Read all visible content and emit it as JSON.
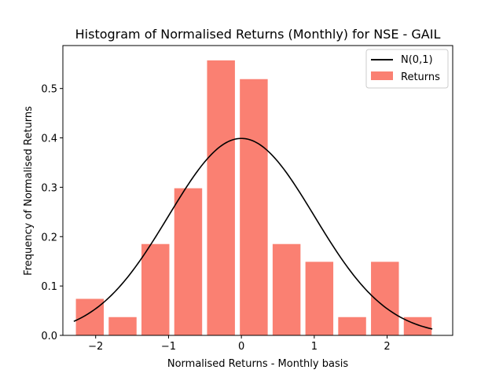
{
  "chart_data": {
    "type": "bar",
    "title": "Histogram of Normalised Returns (Monthly) for NSE - GAIL",
    "xlabel": "Normalised Returns - Monthly basis",
    "ylabel": "Frequency of Normalised Returns",
    "xlim": [
      -2.45,
      2.9
    ],
    "ylim": [
      0,
      0.587
    ],
    "xticks": [
      -2,
      -1,
      0,
      1,
      2
    ],
    "xtick_labels": [
      "−2",
      "−1",
      "0",
      "1",
      "2"
    ],
    "yticks": [
      0.0,
      0.1,
      0.2,
      0.3,
      0.4,
      0.5
    ],
    "ytick_labels": [
      "0.0",
      "0.1",
      "0.2",
      "0.3",
      "0.4",
      "0.5"
    ],
    "legend_position": "top-right",
    "grid": false,
    "series": [
      {
        "name": "Returns",
        "kind": "histogram",
        "color": "#fa8072",
        "bin_width": 0.45,
        "bar_width_fraction": 0.85,
        "bin_centers": [
          -2.08,
          -1.63,
          -1.18,
          -0.73,
          -0.28,
          0.17,
          0.62,
          1.07,
          1.52,
          1.97,
          2.42
        ],
        "values": [
          0.074,
          0.037,
          0.185,
          0.298,
          0.557,
          0.519,
          0.185,
          0.149,
          0.037,
          0.149,
          0.037
        ]
      },
      {
        "name": "N(0,1)",
        "kind": "line",
        "color": "#000000",
        "function": "standard normal pdf",
        "x_range": [
          -2.3,
          2.62
        ]
      }
    ]
  }
}
